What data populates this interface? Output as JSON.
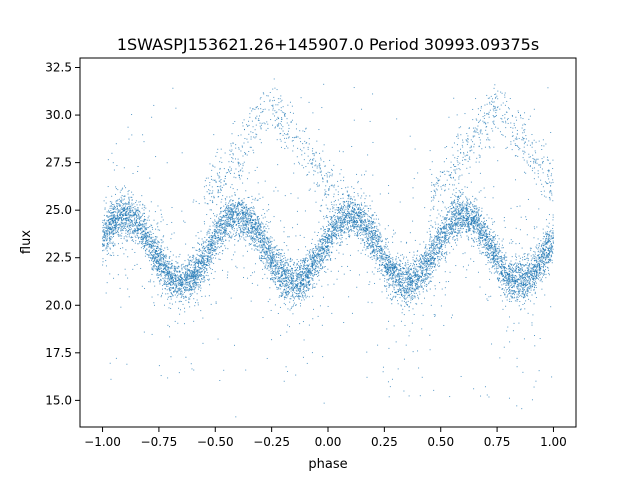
{
  "chart_data": {
    "type": "scatter",
    "title": "1SWASPJ153621.26+145907.0 Period 30993.09375s",
    "xlabel": "phase",
    "ylabel": "flux",
    "xlim": [
      -1.1,
      1.1
    ],
    "ylim": [
      13.6,
      33.0
    ],
    "xticks": [
      -1.0,
      -0.75,
      -0.5,
      -0.25,
      0.0,
      0.25,
      0.5,
      0.75,
      1.0
    ],
    "xtick_labels": [
      "−1.00",
      "−0.75",
      "−0.50",
      "−0.25",
      "0.00",
      "0.25",
      "0.50",
      "0.75",
      "1.00"
    ],
    "yticks": [
      15.0,
      17.5,
      20.0,
      22.5,
      25.0,
      27.5,
      30.0,
      32.5
    ],
    "ytick_labels": [
      "15.0",
      "17.5",
      "20.0",
      "22.5",
      "25.0",
      "27.5",
      "30.0",
      "32.5"
    ],
    "grid": false,
    "point_color": "#1f77b4",
    "phase_range": [
      -1.0,
      1.0
    ],
    "main_band": {
      "description": "periodic variation, 4 cycles over phase -1 to 1",
      "maxima_phase": [
        -0.9,
        -0.4,
        0.1,
        0.6
      ],
      "minima_phase": [
        -0.65,
        -0.15,
        0.35,
        0.85
      ],
      "max_flux": 24.7,
      "min_flux": 21.2,
      "scatter": 0.55
    },
    "secondary_arcs": {
      "peak_phase": [
        -0.25,
        0.75
      ],
      "peak_flux": 30.5,
      "edge_phase": [
        -0.8,
        0.25,
        1.0
      ],
      "edge_flux": 28.5
    },
    "outlier_range": [
      14.5,
      32.0
    ]
  }
}
